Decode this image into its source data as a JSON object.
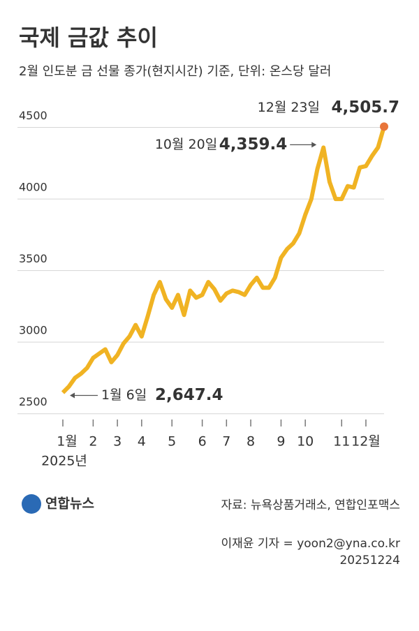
{
  "chart_data": {
    "type": "line",
    "title": "국제 금값 추이",
    "subtitle": "2월 인도분 금 선물 종가(현지시간) 기준, 단위: 온스당 달러",
    "categories": [
      "1월",
      null,
      null,
      null,
      null,
      "2",
      null,
      null,
      null,
      "3",
      null,
      null,
      null,
      "4",
      null,
      null,
      null,
      null,
      "5",
      null,
      null,
      null,
      null,
      "6",
      null,
      null,
      null,
      "7",
      null,
      null,
      null,
      "8",
      null,
      null,
      null,
      null,
      "9",
      null,
      null,
      null,
      "10",
      null,
      null,
      null,
      null,
      null,
      "11",
      null,
      null,
      null,
      "12월",
      null,
      null,
      null
    ],
    "x_sublabel": "2025년",
    "series": [
      {
        "color": "#f0b323",
        "values": [
          2647.4,
          2690,
          2750,
          2780,
          2820,
          2890,
          2920,
          2950,
          2860,
          2910,
          2990,
          3040,
          3120,
          3040,
          3180,
          3330,
          3420,
          3300,
          3240,
          3330,
          3190,
          3360,
          3310,
          3330,
          3420,
          3370,
          3290,
          3340,
          3360,
          3350,
          3330,
          3400,
          3450,
          3380,
          3380,
          3450,
          3590,
          3650,
          3690,
          3760,
          3890,
          4000,
          4210,
          4359.4,
          4120,
          4000,
          4000,
          4090,
          4080,
          4220,
          4230,
          4300,
          4360,
          4505.7
        ],
        "value_labels": [
          "2,647.4",
          null,
          null,
          null,
          null,
          null,
          null,
          null,
          null,
          null,
          null,
          null,
          null,
          null,
          null,
          null,
          null,
          null,
          null,
          null,
          null,
          null,
          null,
          null,
          null,
          null,
          null,
          null,
          null,
          null,
          null,
          null,
          null,
          null,
          null,
          null,
          null,
          null,
          null,
          null,
          null,
          null,
          null,
          "4,359.4",
          null,
          null,
          null,
          null,
          null,
          null,
          null,
          null,
          null,
          "4,505.7"
        ],
        "date_labels": [
          "1월 6일",
          null,
          null,
          null,
          null,
          null,
          null,
          null,
          null,
          null,
          null,
          null,
          null,
          null,
          null,
          null,
          null,
          null,
          null,
          null,
          null,
          null,
          null,
          null,
          null,
          null,
          null,
          null,
          null,
          null,
          null,
          null,
          null,
          null,
          null,
          null,
          null,
          null,
          null,
          null,
          null,
          null,
          null,
          "10월 20일",
          null,
          null,
          null,
          null,
          null,
          null,
          null,
          null,
          null,
          "12월 23일"
        ]
      }
    ],
    "endpoint_color": "#e8753a",
    "ylim": [
      2450,
      4600
    ],
    "yticks": [
      2500,
      3000,
      3500,
      4000,
      4500
    ],
    "grid": true
  },
  "footer": {
    "logo": "연합뉴스",
    "source": "자료: 뉴욕상품거래소, 연합인포맥스",
    "credit": "이재윤 기자 = yoon2@yna.co.kr",
    "date": "20251224"
  }
}
